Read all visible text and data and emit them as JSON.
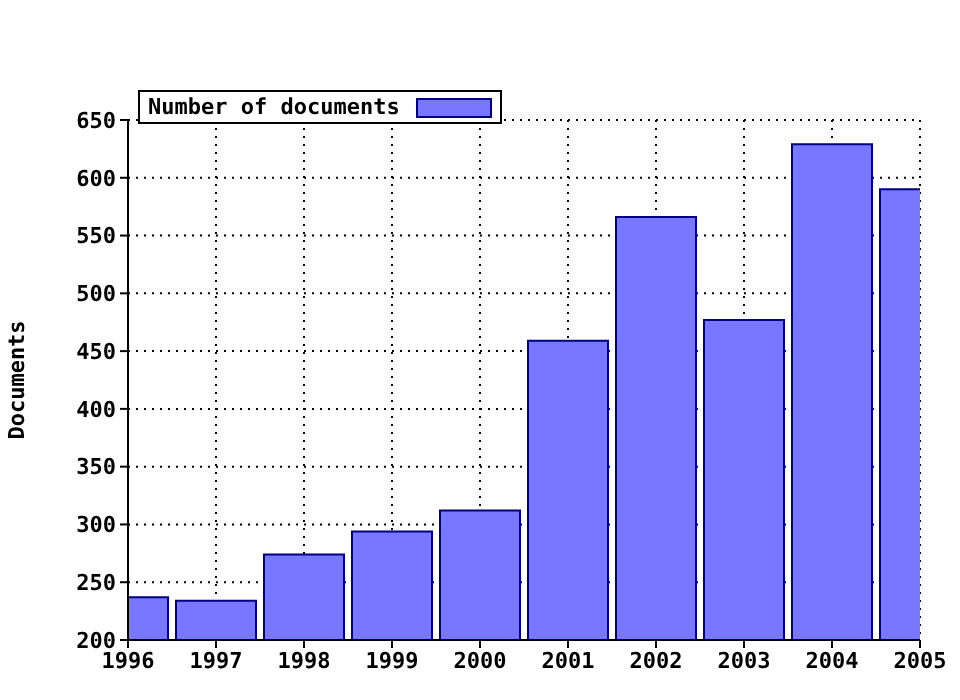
{
  "chart_data": {
    "type": "bar",
    "ylabel": "Documents",
    "x": [
      1996,
      1997,
      1998,
      1999,
      2000,
      2001,
      2002,
      2003,
      2004,
      2005
    ],
    "series": [
      {
        "name": "Number of documents",
        "color": "#7777ff",
        "values": [
          237,
          234,
          274,
          294,
          312,
          459,
          566,
          477,
          629,
          590
        ]
      }
    ],
    "xlim": [
      1996,
      2005
    ],
    "xticks": [
      1996,
      1997,
      1998,
      1999,
      2000,
      2001,
      2002,
      2003,
      2004,
      2005
    ],
    "ylim": [
      200,
      650
    ],
    "yticks": [
      200,
      250,
      300,
      350,
      400,
      450,
      500,
      550,
      600,
      650
    ],
    "grid": true,
    "legend": "top left"
  }
}
